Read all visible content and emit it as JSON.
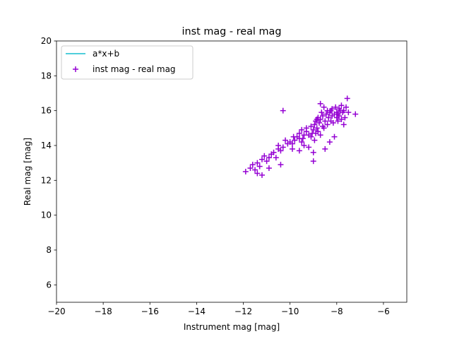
{
  "chart_data": {
    "type": "scatter",
    "title": "inst mag - real mag",
    "xlabel": "Instrument mag [mag]",
    "ylabel": "Real mag [mag]",
    "xlim": [
      -20,
      -5
    ],
    "ylim": [
      5,
      20
    ],
    "xticks": [
      -20,
      -18,
      -16,
      -14,
      -12,
      -10,
      -8,
      -6
    ],
    "yticks": [
      6,
      8,
      10,
      12,
      14,
      16,
      18,
      20
    ],
    "grid": false,
    "legend_position": "top-left",
    "legend": [
      {
        "label": "a*x+b",
        "kind": "line",
        "color": "#17becf"
      },
      {
        "label": "inst mag - real mag",
        "kind": "marker",
        "color": "#9400d3"
      }
    ],
    "series": [
      {
        "name": "inst mag - real mag",
        "marker": "+",
        "color": "#9400d3",
        "points": [
          [
            -11.9,
            12.5
          ],
          [
            -11.7,
            12.7
          ],
          [
            -11.6,
            12.9
          ],
          [
            -11.5,
            12.6
          ],
          [
            -11.4,
            12.4
          ],
          [
            -11.4,
            13.0
          ],
          [
            -11.3,
            12.8
          ],
          [
            -11.2,
            13.2
          ],
          [
            -11.1,
            13.4
          ],
          [
            -11.0,
            13.1
          ],
          [
            -10.9,
            13.3
          ],
          [
            -10.9,
            12.7
          ],
          [
            -10.8,
            13.5
          ],
          [
            -10.7,
            13.6
          ],
          [
            -10.6,
            13.3
          ],
          [
            -10.5,
            13.8
          ],
          [
            -10.5,
            14.0
          ],
          [
            -10.4,
            13.7
          ],
          [
            -10.4,
            12.9
          ],
          [
            -10.3,
            13.9
          ],
          [
            -10.3,
            16.0
          ],
          [
            -10.1,
            14.1
          ],
          [
            -10.0,
            14.2
          ],
          [
            -9.9,
            13.8
          ],
          [
            -9.9,
            14.1
          ],
          [
            -9.8,
            14.3
          ],
          [
            -9.7,
            14.5
          ],
          [
            -9.6,
            14.4
          ],
          [
            -9.6,
            14.7
          ],
          [
            -9.5,
            14.9
          ],
          [
            -9.5,
            14.2
          ],
          [
            -9.4,
            14.6
          ],
          [
            -9.4,
            14.0
          ],
          [
            -9.3,
            14.8
          ],
          [
            -9.3,
            15.0
          ],
          [
            -9.2,
            14.6
          ],
          [
            -9.2,
            13.9
          ],
          [
            -9.1,
            14.5
          ],
          [
            -9.1,
            15.1
          ],
          [
            -9.0,
            14.9
          ],
          [
            -9.0,
            13.6
          ],
          [
            -9.0,
            13.1
          ],
          [
            -8.95,
            15.2
          ],
          [
            -8.9,
            15.4
          ],
          [
            -8.9,
            14.7
          ],
          [
            -8.85,
            15.0
          ],
          [
            -8.8,
            14.8
          ],
          [
            -8.8,
            15.6
          ],
          [
            -8.75,
            15.3
          ],
          [
            -8.7,
            15.5
          ],
          [
            -8.7,
            14.6
          ],
          [
            -8.65,
            15.9
          ],
          [
            -8.6,
            15.1
          ],
          [
            -8.6,
            15.7
          ],
          [
            -8.55,
            16.2
          ],
          [
            -8.5,
            15.4
          ],
          [
            -8.5,
            13.8
          ],
          [
            -8.45,
            15.8
          ],
          [
            -8.4,
            15.2
          ],
          [
            -8.4,
            16.0
          ],
          [
            -8.35,
            15.6
          ],
          [
            -8.3,
            15.9
          ],
          [
            -8.3,
            14.2
          ],
          [
            -8.25,
            15.4
          ],
          [
            -8.2,
            16.1
          ],
          [
            -8.2,
            15.7
          ],
          [
            -8.15,
            15.3
          ],
          [
            -8.1,
            15.8
          ],
          [
            -8.1,
            14.5
          ],
          [
            -8.05,
            16.2
          ],
          [
            -8.0,
            15.6
          ],
          [
            -8.0,
            15.9
          ],
          [
            -7.95,
            15.4
          ],
          [
            -7.9,
            16.1
          ],
          [
            -7.9,
            15.7
          ],
          [
            -7.85,
            16.0
          ],
          [
            -7.8,
            15.5
          ],
          [
            -7.8,
            16.3
          ],
          [
            -7.75,
            15.9
          ],
          [
            -7.7,
            15.2
          ],
          [
            -7.7,
            16.0
          ],
          [
            -7.65,
            15.6
          ],
          [
            -7.6,
            16.2
          ],
          [
            -7.55,
            16.7
          ],
          [
            -7.5,
            15.9
          ],
          [
            -7.2,
            15.8
          ],
          [
            -8.7,
            16.4
          ],
          [
            -8.95,
            14.3
          ],
          [
            -9.6,
            13.7
          ],
          [
            -11.2,
            12.3
          ],
          [
            -10.2,
            14.3
          ],
          [
            -9.85,
            14.5
          ],
          [
            -9.45,
            14.4
          ],
          [
            -9.05,
            14.7
          ],
          [
            -8.85,
            15.5
          ],
          [
            -8.55,
            15.0
          ],
          [
            -8.25,
            16.0
          ],
          [
            -7.95,
            15.8
          ]
        ]
      }
    ]
  }
}
